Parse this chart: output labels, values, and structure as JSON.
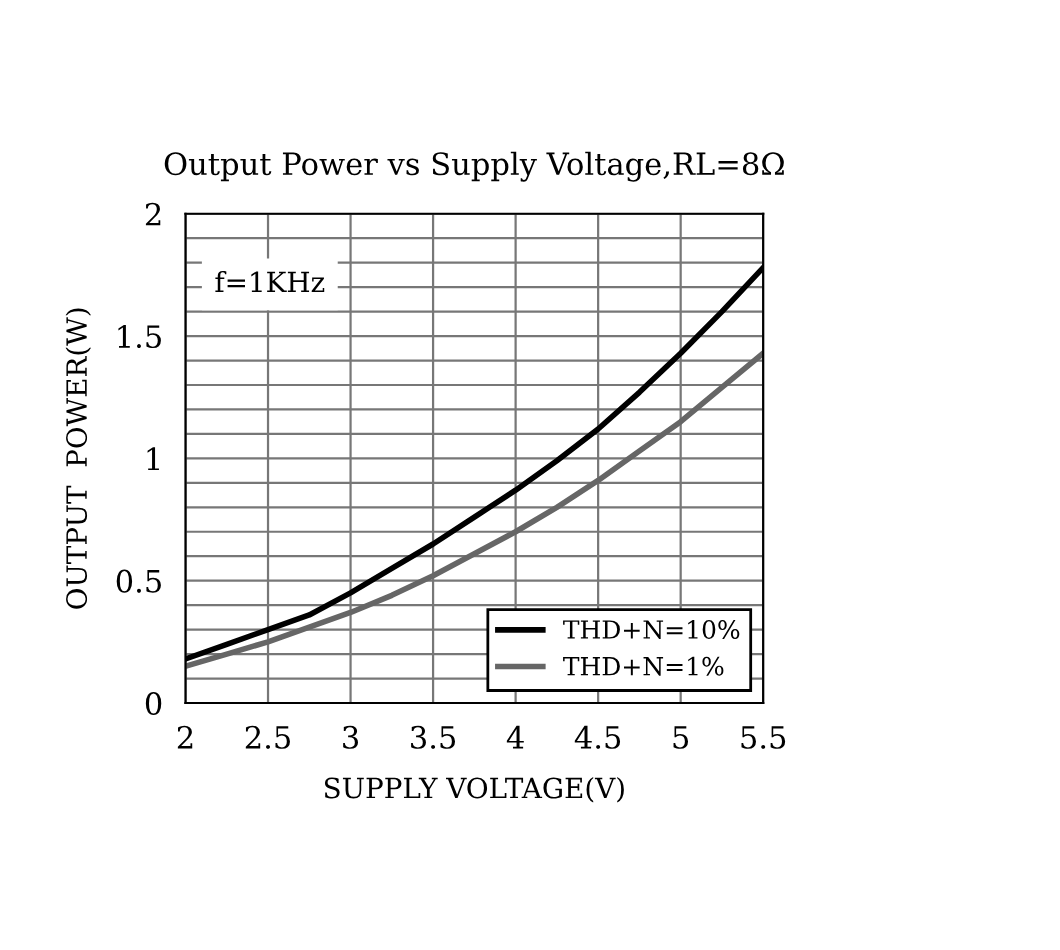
{
  "chart_data": {
    "type": "line",
    "title": "Output Power vs Supply Voltage,RL=8Ω",
    "xlabel": "SUPPLY VOLTAGE(V)",
    "ylabel": "OUTPUT  POWER(W)",
    "annotations": [
      "f=1KHz"
    ],
    "x": [
      2,
      2.25,
      2.5,
      2.75,
      3,
      3.25,
      3.5,
      3.75,
      4,
      4.25,
      4.5,
      4.75,
      5,
      5.25,
      5.5
    ],
    "series": [
      {
        "name": "THD+N=10%",
        "color": "#000000",
        "values": [
          0.18,
          0.24,
          0.3,
          0.36,
          0.45,
          0.55,
          0.65,
          0.76,
          0.87,
          0.99,
          1.12,
          1.27,
          1.43,
          1.6,
          1.78
        ]
      },
      {
        "name": "THD+N=1%",
        "color": "#666666",
        "values": [
          0.15,
          0.2,
          0.25,
          0.31,
          0.37,
          0.44,
          0.52,
          0.61,
          0.7,
          0.8,
          0.91,
          1.03,
          1.15,
          1.29,
          1.43
        ]
      }
    ],
    "xlim": [
      2,
      5.5
    ],
    "xticks": [
      2,
      2.5,
      3,
      3.5,
      4,
      4.5,
      5,
      5.5
    ],
    "ylim": [
      0,
      2
    ],
    "yticks": [
      0,
      {
        "value": 0.1,
        "label": null
      },
      {
        "value": 0.2,
        "label": null
      },
      {
        "value": 0.3,
        "label": null
      },
      {
        "value": 0.4,
        "label": null
      },
      0.5,
      {
        "value": 0.6,
        "label": null
      },
      {
        "value": 0.7,
        "label": null
      },
      {
        "value": 0.8,
        "label": null
      },
      {
        "value": 0.9,
        "label": null
      },
      1,
      {
        "value": 1.1,
        "label": null
      },
      {
        "value": 1.2,
        "label": null
      },
      {
        "value": 1.3,
        "label": null
      },
      {
        "value": 1.4,
        "label": null
      },
      1.5,
      {
        "value": 1.6,
        "label": null
      },
      {
        "value": 1.7,
        "label": null
      },
      {
        "value": 1.8,
        "label": null
      },
      {
        "value": 1.9,
        "label": null
      },
      2
    ],
    "grid": true,
    "legend": "bottom right",
    "line_style": "solid",
    "marker": "none"
  }
}
